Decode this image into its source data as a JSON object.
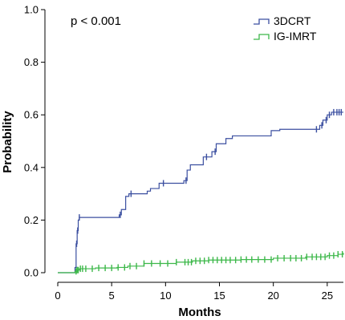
{
  "chart_data": {
    "type": "line",
    "subtype": "kaplan-meier-cumulative-incidence",
    "title": "",
    "xlabel": "Months",
    "ylabel": "Probability",
    "xlim": [
      0,
      26.5
    ],
    "ylim": [
      0,
      1.0
    ],
    "x_ticks": [
      0,
      5,
      10,
      15,
      20,
      25
    ],
    "y_ticks": [
      0.0,
      0.2,
      0.4,
      0.6,
      0.8,
      1.0
    ],
    "x_tick_labels": [
      "0",
      "5",
      "10",
      "15",
      "20",
      "25"
    ],
    "y_tick_labels": [
      "0.0",
      "0.2",
      "0.4",
      "0.6",
      "0.8",
      "1.0"
    ],
    "annotation": "p < 0.001",
    "grid": false,
    "legend_position": "top-right",
    "series": [
      {
        "name": "3DCRT",
        "color": "#3b4fa0",
        "steps": [
          [
            0,
            0
          ],
          [
            1.6,
            0.02
          ],
          [
            1.7,
            0.11
          ],
          [
            1.8,
            0.16
          ],
          [
            1.9,
            0.2
          ],
          [
            2.0,
            0.21
          ],
          [
            3.0,
            0.21
          ],
          [
            5.7,
            0.22
          ],
          [
            5.9,
            0.24
          ],
          [
            6.3,
            0.29
          ],
          [
            6.6,
            0.3
          ],
          [
            8.3,
            0.31
          ],
          [
            8.6,
            0.32
          ],
          [
            9.4,
            0.34
          ],
          [
            11.7,
            0.35
          ],
          [
            12.0,
            0.39
          ],
          [
            12.3,
            0.41
          ],
          [
            13.5,
            0.44
          ],
          [
            14.3,
            0.46
          ],
          [
            14.7,
            0.49
          ],
          [
            15.6,
            0.51
          ],
          [
            16.2,
            0.52
          ],
          [
            19.8,
            0.54
          ],
          [
            20.6,
            0.545
          ],
          [
            24.3,
            0.56
          ],
          [
            24.6,
            0.58
          ],
          [
            25.0,
            0.6
          ],
          [
            25.4,
            0.61
          ],
          [
            26.5,
            0.61
          ]
        ],
        "censored": [
          1.75,
          1.85,
          2.0,
          5.8,
          6.8,
          9.8,
          11.9,
          13.8,
          14.6,
          24.0,
          24.5,
          24.9,
          25.2,
          25.6,
          25.9,
          26.1,
          26.3
        ]
      },
      {
        "name": "IG-IMRT",
        "color": "#3db84a",
        "steps": [
          [
            0,
            0
          ],
          [
            1.6,
            0.005
          ],
          [
            1.8,
            0.01
          ],
          [
            2.0,
            0.015
          ],
          [
            3.5,
            0.018
          ],
          [
            5.5,
            0.02
          ],
          [
            6.5,
            0.025
          ],
          [
            8.0,
            0.035
          ],
          [
            11.0,
            0.04
          ],
          [
            12.5,
            0.045
          ],
          [
            14.0,
            0.048
          ],
          [
            17.0,
            0.05
          ],
          [
            20.0,
            0.055
          ],
          [
            23.0,
            0.06
          ],
          [
            25.0,
            0.065
          ],
          [
            26.0,
            0.07
          ],
          [
            26.5,
            0.075
          ]
        ],
        "censored": [
          1.7,
          1.8,
          1.9,
          2.1,
          2.3,
          2.6,
          3.2,
          3.8,
          4.4,
          5.0,
          5.6,
          6.2,
          6.7,
          7.3,
          8.0,
          8.7,
          9.5,
          10.2,
          11.0,
          11.8,
          12.1,
          12.4,
          12.8,
          13.2,
          13.6,
          14.0,
          14.4,
          14.8,
          15.2,
          15.6,
          16.0,
          16.5,
          17.0,
          17.5,
          18.0,
          18.6,
          19.2,
          19.8,
          20.4,
          21.0,
          21.6,
          22.1,
          22.6,
          23.1,
          23.6,
          24.0,
          24.4,
          24.8,
          25.2,
          25.6,
          26.0,
          26.4
        ]
      }
    ]
  }
}
